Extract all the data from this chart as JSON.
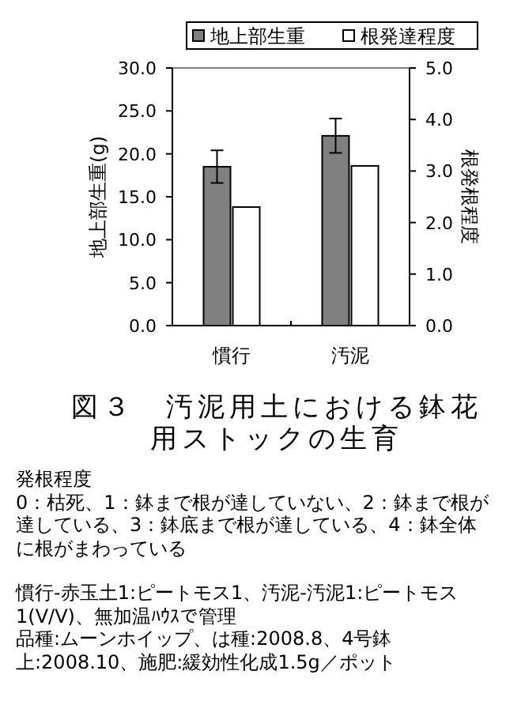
{
  "chart_data": {
    "type": "bar",
    "categories": [
      "慣行",
      "汚泥"
    ],
    "series": [
      {
        "name": "地上部生重",
        "color": "#808080",
        "values": [
          18.5,
          22.1
        ],
        "errors": [
          1.9,
          2.0
        ]
      },
      {
        "name": "根発達程度",
        "color": "#ffffff",
        "values": [
          2.3,
          3.1
        ],
        "axis": "y2"
      }
    ],
    "ylabel": "地上部生重(g)",
    "y2label": "根発根程度",
    "ylim": [
      0,
      30
    ],
    "yticks": [
      {
        "value": 0,
        "label": "0.0"
      },
      {
        "value": 5,
        "label": "5.0"
      },
      {
        "value": 10,
        "label": "10.0"
      },
      {
        "value": 15,
        "label": "15.0"
      },
      {
        "value": 20,
        "label": "20.0"
      },
      {
        "value": 25,
        "label": "25.0"
      },
      {
        "value": 30,
        "label": "30.0"
      }
    ],
    "y2lim": [
      0,
      5
    ],
    "y2ticks": [
      {
        "value": 0,
        "label": "0.0"
      },
      {
        "value": 1,
        "label": "1.0"
      },
      {
        "value": 2,
        "label": "2.0"
      },
      {
        "value": 3,
        "label": "3.0"
      },
      {
        "value": 4,
        "label": "4.0"
      },
      {
        "value": 5,
        "label": "5.0"
      }
    ],
    "legend": "top",
    "title": "図３　汚泥用土における鉢花用ストックの生育",
    "annotations": [
      "発根程度",
      "0：枯死、1：鉢まで根が達していない、2：鉢まで根が達している、3：鉢底まで根が達している、4：鉢全体に根がまわっている",
      "慣行-赤玉土1:ピートモス1、汚泥-汚泥1:ピートモス1(V/V)、無加温ﾊｳｽで管理",
      "品種:ムーンホイップ、は種:2008.8、4号鉢上:2008.10、施肥:緩効性化成1.5g／ポット"
    ]
  }
}
